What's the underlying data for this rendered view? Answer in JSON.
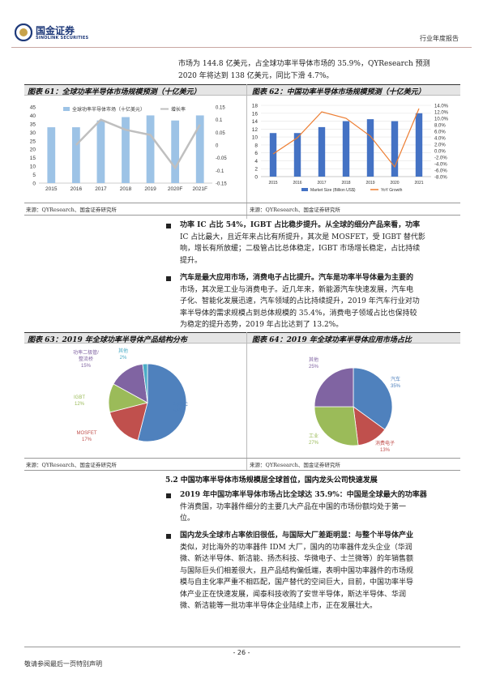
{
  "header": {
    "logo_cn": "国金证券",
    "logo_en": "SINOLINK SECURITIES",
    "report_type": "行业年度报告"
  },
  "intro": {
    "line1": "市场为 144.8 亿美元，占全球功率半导体市场的 35.9%，QYResearch 预测",
    "line2": "2020 年将达到 138 亿美元，同比下滑 4.7%。"
  },
  "fig61": {
    "title": "图表 61：全球功率半导体市场规模预测（十亿美元）",
    "source": "来源：QYResearch、国金证券研究所"
  },
  "fig62": {
    "title": "图表 62：中国功率半导体市场规模预测（十亿美元）",
    "source": ""
  },
  "shared_source": "来源：QYResearch、国金证券研究所",
  "bullet1": {
    "lines": [
      "功率 IC 占比 54%，IGBT 占比稳步提升。从全球的细分产品来看，功率",
      "IC 占比最大，且近年来占比有所提升，其次是 MOSFET，受 IGBT 替代影",
      "响，增长有所放缓；二极管占比总体稳定，IGBT 市场增长稳定，占比持续",
      "提升。"
    ]
  },
  "bullet2": {
    "lines": [
      "汽车是最大应用市场，消费电子占比提升。汽车是功率半导体最为主要的",
      "市场，其次是工业与消费电子。近几年来，新能源汽车快速发展，汽车电",
      "子化、智能化发展迅速，汽车领域的占比持续提升，2019 年汽车行业对功",
      "率半导体的需求规模占到总体规模的 35.4%，消费电子领域占比也保持较",
      "为稳定的提升态势，2019 年占比达到了 13.2%。"
    ]
  },
  "fig63": {
    "title": "图表 63：2019 年全球功率半导体产品结构分布",
    "source": "来源：QYResearch、国金证券研究所"
  },
  "fig64": {
    "title": "图表 64：2019 年全球功率半导体应用市场占比",
    "source": "来源：QYResearch、国金证券研究所"
  },
  "section": "5.2 中国功率半导体市场规模居全球首位，国内龙头公司快速发展",
  "bullet3": {
    "lines": [
      "2019 年中国功率半导体市场占比全球达 35.9%：中国是全球最大的功率器",
      "件消费国，功率器件细分的主要几大产品在中国的市场份额均处于第一",
      "位。"
    ]
  },
  "bullet4": {
    "lines": [
      "国内龙头全球市占率依旧很低，与国际大厂差距明显：与整个半导体产业",
      "类似，对比海外的功率器件 IDM 大厂，国内的功率器件龙头企业（华润",
      "微、新达半导体、新洁能、扬杰科技、华微电子、士兰微等）的年销售额",
      "与国际巨头们相差很大，且产品结构偏低端，表明中国功率器件的市场规",
      "模与自主化率严重不相匹配，国产替代的空间巨大，目前，中国功率半导",
      "体产业正在快速发展，闻泰科技收购了安世半导体，斯达半导体、华润",
      "微、新洁能等一批功率半导体企业陆续上市，正在发展壮大。"
    ]
  },
  "footer": {
    "page": "- 26 -",
    "disclaimer": "敬请参阅最后一页特别声明"
  },
  "chart_data": [
    {
      "type": "bar",
      "title": "",
      "categories": [
        "2015",
        "2016",
        "2017",
        "2018",
        "2019",
        "2020F",
        "2021F"
      ],
      "series": [
        {
          "name": "全球功率半导体市场（十亿美元）",
          "type": "bar",
          "axis": "left",
          "values": [
            33,
            33,
            37,
            39,
            40,
            37,
            40
          ]
        },
        {
          "name": "增长率",
          "type": "line",
          "axis": "right",
          "values": [
            null,
            0.0,
            0.1,
            0.06,
            0.04,
            -0.09,
            0.08
          ]
        }
      ],
      "ylim": [
        0,
        45
      ],
      "yticks": [
        0,
        5,
        10,
        15,
        20,
        25,
        30,
        35,
        40,
        45
      ],
      "y2lim": [
        -0.15,
        0.15
      ],
      "y2ticks": [
        -0.15,
        -0.1,
        -0.05,
        0,
        0.05,
        0.1,
        0.15
      ],
      "legend": "top",
      "colors": {
        "bar": "#9dc3e6",
        "line": "#bfbfbf"
      }
    },
    {
      "type": "bar",
      "title": "",
      "categories": [
        "2015",
        "2016",
        "2017",
        "2018",
        "2019",
        "2020",
        "2021"
      ],
      "series": [
        {
          "name": "Market Size (Billion US$)",
          "type": "bar",
          "axis": "left",
          "values": [
            11,
            11,
            12.5,
            14,
            14.5,
            14,
            16
          ]
        },
        {
          "name": "YoY Growth",
          "type": "line",
          "axis": "right",
          "values": [
            -0.01,
            0.04,
            0.12,
            0.1,
            0.045,
            -0.05,
            0.13
          ]
        }
      ],
      "ylim": [
        0,
        18
      ],
      "yticks": [
        0,
        2,
        4,
        6,
        8,
        10,
        12,
        14,
        16,
        18
      ],
      "y2lim": [
        -0.08,
        0.14
      ],
      "y2ticks": [
        "-8.0%",
        "-6.0%",
        "-4.0%",
        "-2.0%",
        "0.0%",
        "2.0%",
        "4.0%",
        "6.0%",
        "8.0%",
        "10.0%",
        "12.0%",
        "14.0%"
      ],
      "legend": "bottom",
      "colors": {
        "bar": "#4472c4",
        "line": "#ed7d31"
      }
    },
    {
      "type": "pie",
      "title": "",
      "labels": [
        "功率IC",
        "MOSFET",
        "IGBT",
        "功率二极管/整流桥",
        "其他"
      ],
      "values": [
        54,
        17,
        12,
        15,
        2
      ],
      "colors": [
        "#4f81bd",
        "#c0504d",
        "#9bbb59",
        "#8064a2",
        "#4bacc6"
      ]
    },
    {
      "type": "pie",
      "title": "",
      "labels": [
        "汽车",
        "消费电子",
        "工业",
        "其他"
      ],
      "values": [
        35,
        13,
        27,
        25
      ],
      "colors": [
        "#4f81bd",
        "#c0504d",
        "#9bbb59",
        "#8064a2"
      ]
    }
  ]
}
